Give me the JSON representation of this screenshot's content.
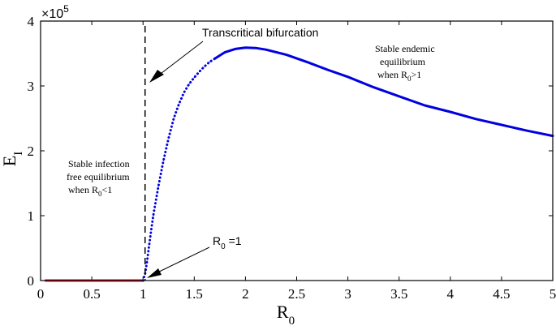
{
  "chart_data": {
    "type": "line",
    "title": "",
    "xlabel": "R",
    "xlabel_sub": "0",
    "ylabel": "E",
    "ylabel_sub": "I",
    "y_multiplier": "×10",
    "y_multiplier_exp": "5",
    "xlim": [
      0,
      5
    ],
    "ylim": [
      0,
      4
    ],
    "xticks": [
      "0",
      "0.5",
      "1",
      "1.5",
      "2",
      "2.5",
      "3",
      "3.5",
      "4",
      "4.5",
      "5"
    ],
    "yticks": [
      "0",
      "1",
      "2",
      "3",
      "4"
    ],
    "bifurcation_x": 1.02,
    "series": [
      {
        "role": "infection-free",
        "color": "#e8001c",
        "style": "solid",
        "x": [
          0.05,
          1.0
        ],
        "y": [
          0,
          0
        ]
      },
      {
        "role": "endemic-transient",
        "color": "#0000e0",
        "style": "dotted",
        "x": [
          1.0,
          1.02,
          1.04,
          1.06,
          1.08,
          1.1,
          1.15,
          1.2,
          1.25,
          1.3,
          1.35,
          1.4,
          1.45,
          1.5,
          1.55,
          1.6,
          1.65,
          1.7
        ],
        "y": [
          0,
          0.1,
          0.3,
          0.55,
          0.78,
          1.0,
          1.45,
          1.85,
          2.2,
          2.5,
          2.72,
          2.9,
          3.03,
          3.13,
          3.22,
          3.3,
          3.37,
          3.42
        ]
      },
      {
        "role": "endemic-stable",
        "color": "#0000e0",
        "style": "solid",
        "x": [
          1.7,
          1.8,
          1.9,
          2.0,
          2.1,
          2.2,
          2.4,
          2.6,
          2.8,
          3.0,
          3.25,
          3.5,
          3.75,
          4.0,
          4.25,
          4.5,
          4.75,
          5.0
        ],
        "y": [
          3.42,
          3.52,
          3.57,
          3.59,
          3.585,
          3.56,
          3.48,
          3.37,
          3.25,
          3.14,
          2.98,
          2.84,
          2.7,
          2.6,
          2.49,
          2.4,
          2.31,
          2.23
        ]
      }
    ],
    "annotations": {
      "bifurcation": "Transcritical bifurcation",
      "endemic_line1": "Stable endemic",
      "endemic_line2": "equilibrium",
      "endemic_line3_pre": "when R",
      "endemic_line3_sub": "0",
      "endemic_line3_post": ">1",
      "free_line1": "Stable infection",
      "free_line2": "free equilibrium",
      "free_line3_pre": "when R",
      "free_line3_sub": "0",
      "free_line3_post": "<1",
      "r0_pre": "R",
      "r0_sub": "0",
      "r0_post": " =1"
    }
  }
}
